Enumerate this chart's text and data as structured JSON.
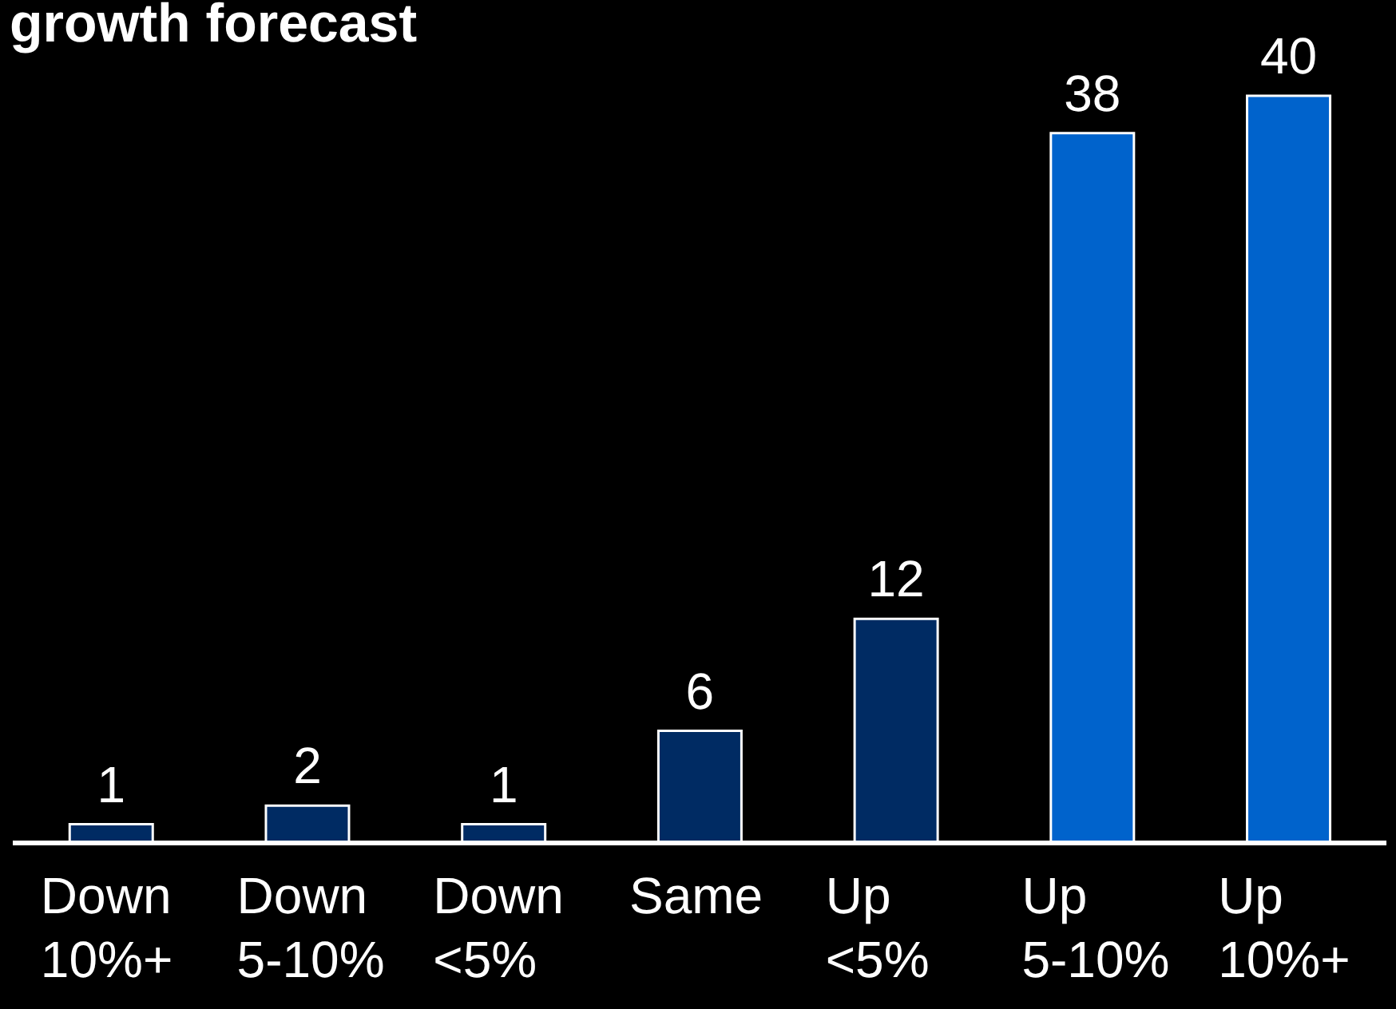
{
  "chart_data": {
    "type": "bar",
    "title": "growth forecast",
    "categories": [
      "Down 10%+",
      "Down 5-10%",
      "Down <5%",
      "Same",
      "Up <5%",
      "Up 5-10%",
      "Up 10%+"
    ],
    "values": [
      1,
      2,
      1,
      6,
      12,
      38,
      40
    ],
    "colors": [
      "#002b63",
      "#002b63",
      "#002b63",
      "#002b63",
      "#002b63",
      "#0063cc",
      "#0063cc"
    ],
    "data_labels": true
  }
}
